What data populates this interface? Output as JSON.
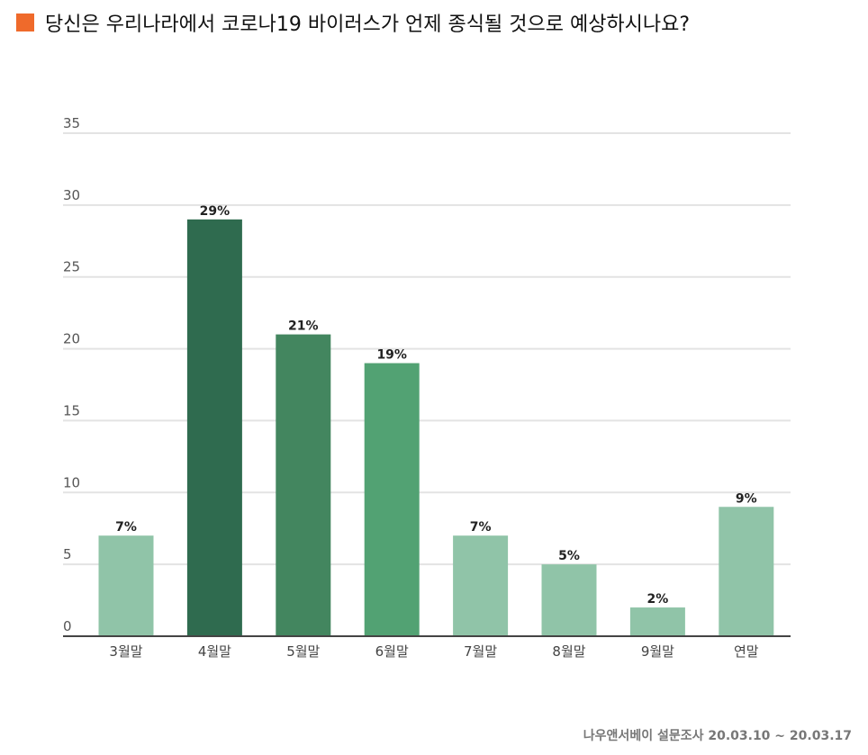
{
  "title": "당신은 우리나라에서 코로나19 바이러스가 언제 종식될 것으로 예상하시나요?",
  "source": "나우앤서베이 설문조사 20.03.10 ~ 20.03.17",
  "colors": {
    "title_marker": "#EF6A2B",
    "bars": [
      "#90C4A8",
      "#2F6B4F",
      "#43865F",
      "#52A273",
      "#90C4A8",
      "#90C4A8",
      "#90C4A8",
      "#90C4A8"
    ],
    "gridline": "#E3E3E3",
    "baseline": "#444444"
  },
  "chart_data": {
    "type": "bar",
    "title": "당신은 우리나라에서 코로나19 바이러스가 언제 종식될 것으로 예상하시나요?",
    "categories": [
      "3월말",
      "4월말",
      "5월말",
      "6월말",
      "7월말",
      "8월말",
      "9월말",
      "연말"
    ],
    "values": [
      7,
      29,
      21,
      19,
      7,
      5,
      2,
      9
    ],
    "data_labels": [
      "7%",
      "29%",
      "21%",
      "19%",
      "7%",
      "5%",
      "2%",
      "9%"
    ],
    "y_ticks": [
      "0",
      "5",
      "10",
      "15",
      "20",
      "25",
      "30",
      "35"
    ],
    "xlabel": "",
    "ylabel": "",
    "ylim": [
      0,
      35
    ],
    "grid": true,
    "legend": "none"
  }
}
